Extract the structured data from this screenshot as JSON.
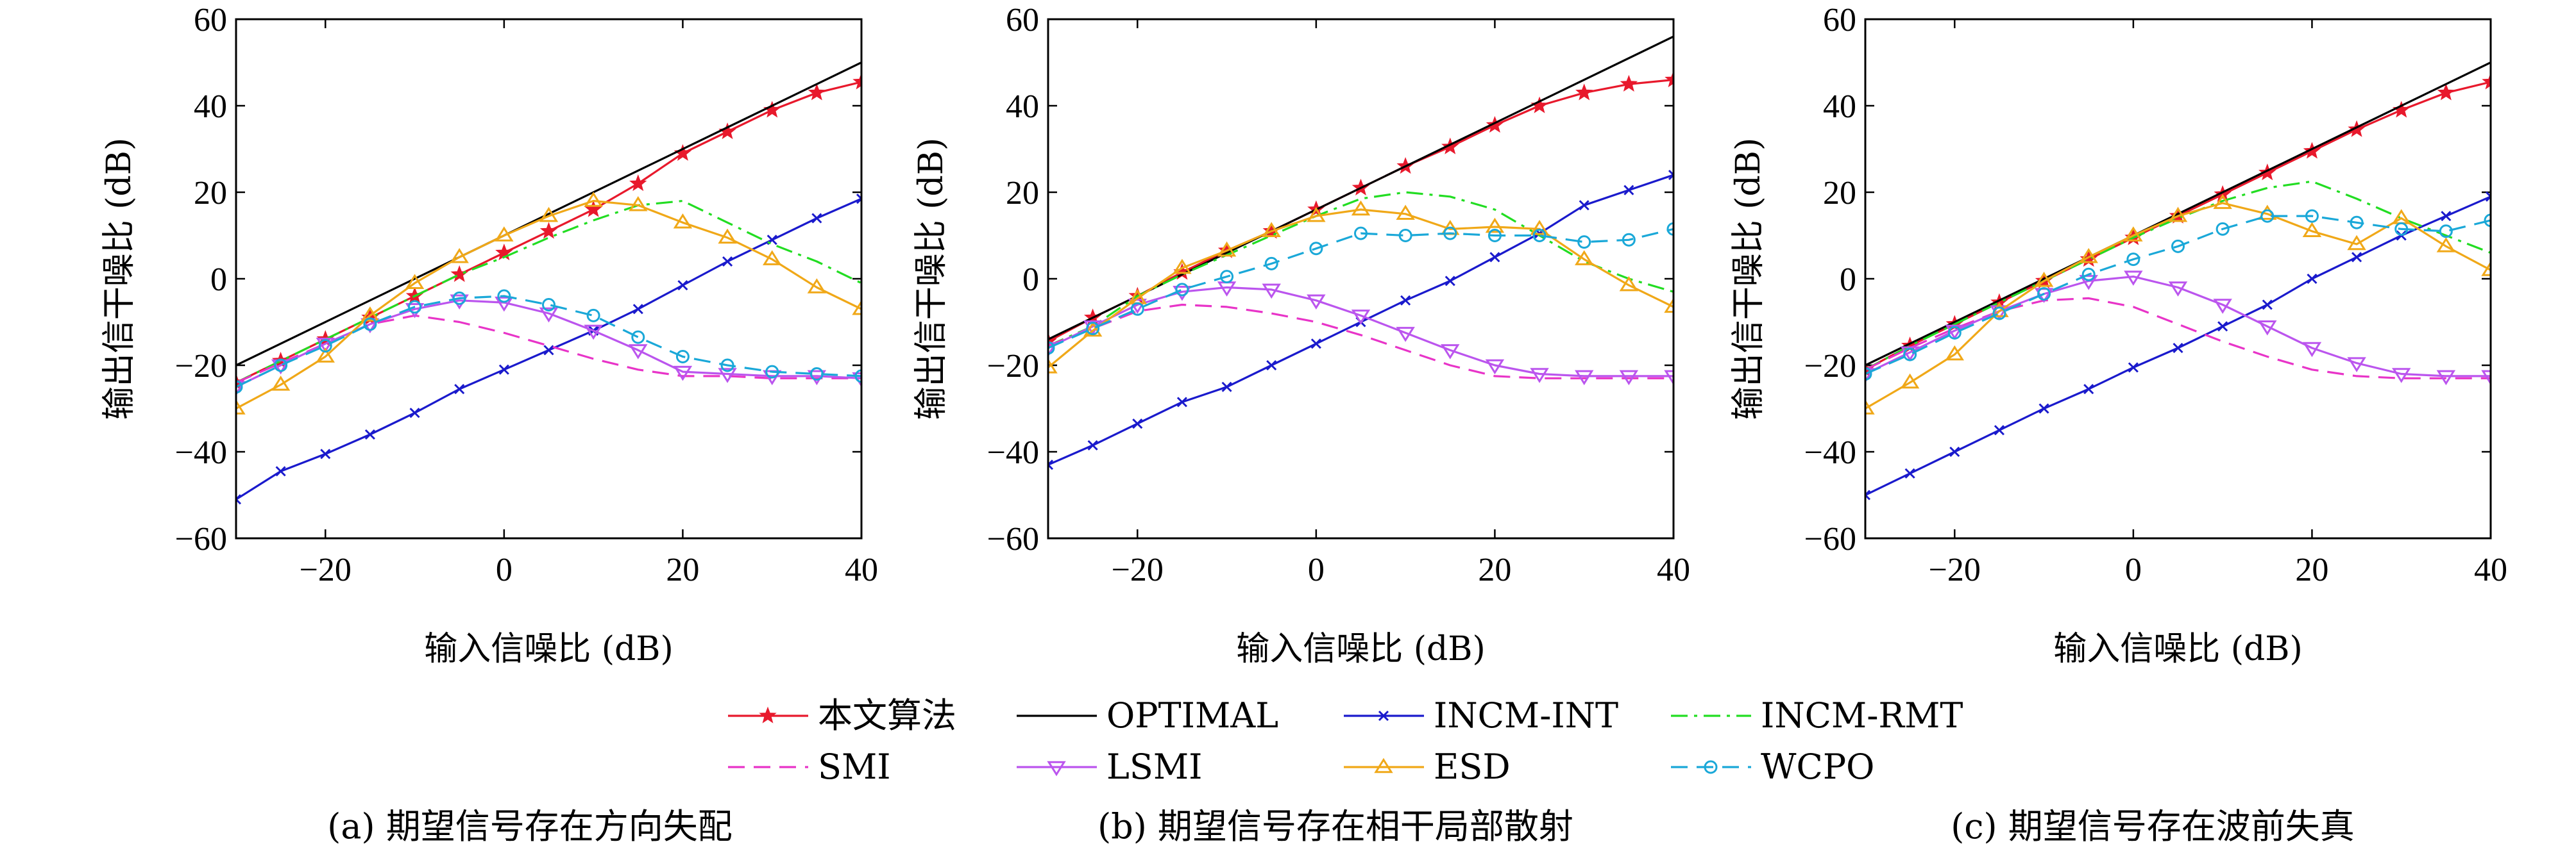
{
  "legend": [
    {
      "name": "本文算法",
      "color": "#e8192c",
      "dash": "",
      "marker": "star"
    },
    {
      "name": "OPTIMAL",
      "color": "#000000",
      "dash": "",
      "marker": "none"
    },
    {
      "name": "INCM-INT",
      "color": "#1a1acc",
      "dash": "",
      "marker": "x"
    },
    {
      "name": "INCM-RMT",
      "color": "#22dd22",
      "dash": "dashdot",
      "marker": "none"
    },
    {
      "name": "SMI",
      "color": "#e834c8",
      "dash": "dash",
      "marker": "none"
    },
    {
      "name": "LSMI",
      "color": "#bb55ee",
      "dash": "",
      "marker": "triangle-down"
    },
    {
      "name": "ESD",
      "color": "#f0a818",
      "dash": "",
      "marker": "triangle-up"
    },
    {
      "name": "WCPO",
      "color": "#1aa8d8",
      "dash": "dash",
      "marker": "circle"
    }
  ],
  "chart_data": [
    {
      "type": "line",
      "caption": "(a) 期望信号存在方向失配",
      "xlabel": "输入信噪比 (dB)",
      "ylabel": "输出信干噪比 (dB)",
      "xlim": [
        -30,
        40
      ],
      "ylim": [
        -60,
        60
      ],
      "xticks": [
        -20,
        0,
        20,
        40
      ],
      "yticks": [
        -60,
        -40,
        -20,
        0,
        20,
        40,
        60
      ],
      "xtick_labels": [
        "−20",
        "0",
        "20",
        "40"
      ],
      "ytick_labels": [
        "−60",
        "−40",
        "−20",
        "0",
        "20",
        "40",
        "60"
      ],
      "series": [
        {
          "name": "本文算法",
          "x": [
            -30,
            -25,
            -20,
            -15,
            -10,
            -5,
            0,
            5,
            10,
            15,
            20,
            25,
            30,
            35,
            40
          ],
          "y": [
            -24,
            -19,
            -14,
            -9,
            -4,
            1,
            6,
            11,
            16,
            22,
            29,
            34,
            39,
            43,
            45.5
          ]
        },
        {
          "name": "OPTIMAL",
          "x": [
            -30,
            40
          ],
          "y": [
            -20,
            50
          ]
        },
        {
          "name": "INCM-INT",
          "x": [
            -30,
            -25,
            -20,
            -15,
            -10,
            -5,
            0,
            5,
            10,
            15,
            20,
            25,
            30,
            35,
            40
          ],
          "y": [
            -51,
            -44.5,
            -40.5,
            -36,
            -31,
            -25.5,
            -21,
            -16.5,
            -12,
            -7,
            -1.5,
            4,
            9,
            14,
            18.5
          ]
        },
        {
          "name": "INCM-RMT",
          "x": [
            -30,
            -25,
            -20,
            -15,
            -10,
            -5,
            0,
            5,
            10,
            15,
            20,
            25,
            30,
            35,
            40
          ],
          "y": [
            -24,
            -19,
            -14,
            -9,
            -4,
            1,
            5,
            9.5,
            13.5,
            17,
            18,
            13,
            8,
            4,
            -1
          ]
        },
        {
          "name": "SMI",
          "x": [
            -30,
            -25,
            -20,
            -15,
            -10,
            -5,
            0,
            5,
            10,
            15,
            20,
            25,
            30,
            35,
            40
          ],
          "y": [
            -24,
            -19.5,
            -15,
            -10.5,
            -8.5,
            -10,
            -12.5,
            -15.5,
            -18.5,
            -21,
            -22.5,
            -22.5,
            -23,
            -23,
            -23
          ]
        },
        {
          "name": "LSMI",
          "x": [
            -30,
            -25,
            -20,
            -15,
            -10,
            -5,
            0,
            5,
            10,
            15,
            20,
            25,
            30,
            35,
            40
          ],
          "y": [
            -25,
            -20,
            -15,
            -10.5,
            -7,
            -5,
            -5.5,
            -8,
            -12,
            -16.5,
            -21.5,
            -22,
            -22.5,
            -22.5,
            -23
          ]
        },
        {
          "name": "ESD",
          "x": [
            -30,
            -25,
            -20,
            -15,
            -10,
            -5,
            0,
            5,
            10,
            15,
            20,
            25,
            30,
            35,
            40
          ],
          "y": [
            -30,
            -24.5,
            -18,
            -8.5,
            -1,
            5,
            10,
            14.5,
            18,
            17,
            13,
            9.5,
            4.5,
            -2,
            -7
          ]
        },
        {
          "name": "WCPO",
          "x": [
            -30,
            -25,
            -20,
            -15,
            -10,
            -5,
            0,
            5,
            10,
            15,
            20,
            25,
            30,
            35,
            40
          ],
          "y": [
            -25,
            -20,
            -15.5,
            -10.5,
            -6.5,
            -4.5,
            -4,
            -6,
            -8.5,
            -13.5,
            -18,
            -20,
            -21.5,
            -22,
            -22.5
          ]
        }
      ]
    },
    {
      "type": "line",
      "caption": "(b) 期望信号存在相干局部散射",
      "xlabel": "输入信噪比 (dB)",
      "ylabel": "输出信干噪比 (dB)",
      "xlim": [
        -30,
        40
      ],
      "ylim": [
        -60,
        60
      ],
      "xticks": [
        -20,
        0,
        20,
        40
      ],
      "yticks": [
        -60,
        -40,
        -20,
        0,
        20,
        40,
        60
      ],
      "xtick_labels": [
        "−20",
        "0",
        "20",
        "40"
      ],
      "ytick_labels": [
        "−60",
        "−40",
        "−20",
        "0",
        "20",
        "40",
        "60"
      ],
      "series": [
        {
          "name": "本文算法",
          "x": [
            -30,
            -25,
            -20,
            -15,
            -10,
            -5,
            0,
            5,
            10,
            15,
            20,
            25,
            30,
            35,
            40
          ],
          "y": [
            -14.5,
            -9,
            -4,
            1.5,
            6.5,
            11,
            16,
            21,
            26,
            30.5,
            35.5,
            40,
            43,
            45,
            46
          ]
        },
        {
          "name": "OPTIMAL",
          "x": [
            -30,
            40
          ],
          "y": [
            -14,
            56
          ]
        },
        {
          "name": "INCM-INT",
          "x": [
            -30,
            -25,
            -20,
            -15,
            -10,
            -5,
            0,
            5,
            10,
            15,
            20,
            25,
            30,
            35,
            40
          ],
          "y": [
            -43,
            -38.5,
            -33.5,
            -28.5,
            -25,
            -20,
            -15,
            -10,
            -5,
            -0.5,
            5,
            10.5,
            17,
            20.5,
            24
          ]
        },
        {
          "name": "INCM-RMT",
          "x": [
            -30,
            -25,
            -20,
            -15,
            -10,
            -5,
            0,
            5,
            10,
            15,
            20,
            25,
            30,
            35,
            40
          ],
          "y": [
            -15.5,
            -11,
            -4,
            1,
            5.5,
            10,
            14.5,
            18.5,
            20,
            19,
            16,
            10,
            4,
            0,
            -3
          ]
        },
        {
          "name": "SMI",
          "x": [
            -30,
            -25,
            -20,
            -15,
            -10,
            -5,
            0,
            5,
            10,
            15,
            20,
            25,
            30,
            35,
            40
          ],
          "y": [
            -15.5,
            -11.5,
            -7.5,
            -6,
            -6.5,
            -8,
            -10,
            -13,
            -16.5,
            -20,
            -22.5,
            -23,
            -23,
            -23,
            -23
          ]
        },
        {
          "name": "LSMI",
          "x": [
            -30,
            -25,
            -20,
            -15,
            -10,
            -5,
            0,
            5,
            10,
            15,
            20,
            25,
            30,
            35,
            40
          ],
          "y": [
            -16,
            -11,
            -6,
            -3,
            -2,
            -2.5,
            -5,
            -8.5,
            -12.5,
            -16.5,
            -20,
            -22,
            -22.5,
            -22.5,
            -22.5
          ]
        },
        {
          "name": "ESD",
          "x": [
            -30,
            -25,
            -20,
            -15,
            -10,
            -5,
            0,
            5,
            10,
            15,
            20,
            25,
            30,
            35,
            40
          ],
          "y": [
            -20.5,
            -12,
            -4.5,
            2.5,
            6.5,
            11,
            14.5,
            16,
            15,
            11.5,
            12,
            11.5,
            4.5,
            -1.5,
            -6.5
          ]
        },
        {
          "name": "WCPO",
          "x": [
            -30,
            -25,
            -20,
            -15,
            -10,
            -5,
            0,
            5,
            10,
            15,
            20,
            25,
            30,
            35,
            40
          ],
          "y": [
            -16,
            -11.5,
            -7,
            -2.5,
            0.5,
            3.5,
            7,
            10.5,
            10,
            10.5,
            10,
            10,
            8.5,
            9,
            11.5
          ]
        }
      ]
    },
    {
      "type": "line",
      "caption": "(c) 期望信号存在波前失真",
      "xlabel": "输入信噪比 (dB)",
      "ylabel": "输出信干噪比 (dB)",
      "xlim": [
        -30,
        40
      ],
      "ylim": [
        -60,
        60
      ],
      "xticks": [
        -20,
        0,
        20,
        40
      ],
      "yticks": [
        -60,
        -40,
        -20,
        0,
        20,
        40,
        60
      ],
      "xtick_labels": [
        "−20",
        "0",
        "20",
        "40"
      ],
      "ytick_labels": [
        "−60",
        "−40",
        "−20",
        "0",
        "20",
        "40",
        "60"
      ],
      "series": [
        {
          "name": "本文算法",
          "x": [
            -30,
            -25,
            -20,
            -15,
            -10,
            -5,
            0,
            5,
            10,
            15,
            20,
            25,
            30,
            35,
            40
          ],
          "y": [
            -21,
            -15.5,
            -10.5,
            -5.5,
            -0.5,
            4.5,
            9.5,
            14.5,
            19.5,
            24.5,
            29.5,
            34.5,
            39,
            43,
            45.5
          ]
        },
        {
          "name": "OPTIMAL",
          "x": [
            -30,
            40
          ],
          "y": [
            -20,
            50
          ]
        },
        {
          "name": "INCM-INT",
          "x": [
            -30,
            -25,
            -20,
            -15,
            -10,
            -5,
            0,
            5,
            10,
            15,
            20,
            25,
            30,
            35,
            40
          ],
          "y": [
            -50,
            -45,
            -40,
            -35,
            -30,
            -25.5,
            -20.5,
            -16,
            -11,
            -6,
            0,
            5,
            10,
            14.5,
            19
          ]
        },
        {
          "name": "INCM-RMT",
          "x": [
            -30,
            -25,
            -20,
            -15,
            -10,
            -5,
            0,
            5,
            10,
            15,
            20,
            25,
            30,
            35,
            40
          ],
          "y": [
            -21,
            -15.5,
            -10.5,
            -5.5,
            -0.5,
            4.5,
            9.5,
            14,
            18,
            21,
            22.5,
            18.5,
            14,
            10,
            6
          ]
        },
        {
          "name": "SMI",
          "x": [
            -30,
            -25,
            -20,
            -15,
            -10,
            -5,
            0,
            5,
            10,
            15,
            20,
            25,
            30,
            35,
            40
          ],
          "y": [
            -21,
            -16,
            -11.5,
            -7.5,
            -5,
            -4.5,
            -6.5,
            -10.5,
            -14.5,
            -18,
            -21,
            -22.5,
            -23,
            -23,
            -23
          ]
        },
        {
          "name": "LSMI",
          "x": [
            -30,
            -25,
            -20,
            -15,
            -10,
            -5,
            0,
            5,
            10,
            15,
            20,
            25,
            30,
            35,
            40
          ],
          "y": [
            -22,
            -17,
            -12,
            -7.5,
            -3.5,
            -0.5,
            0.5,
            -2,
            -6,
            -11,
            -16,
            -19.5,
            -22,
            -22.5,
            -22.5
          ]
        },
        {
          "name": "ESD",
          "x": [
            -30,
            -25,
            -20,
            -15,
            -10,
            -5,
            0,
            5,
            10,
            15,
            20,
            25,
            30,
            35,
            40
          ],
          "y": [
            -30,
            -24,
            -17.5,
            -7.5,
            -0.5,
            5,
            10,
            14.5,
            17.5,
            15,
            11,
            8,
            14,
            7.5,
            2
          ]
        },
        {
          "name": "WCPO",
          "x": [
            -30,
            -25,
            -20,
            -15,
            -10,
            -5,
            0,
            5,
            10,
            15,
            20,
            25,
            30,
            35,
            40
          ],
          "y": [
            -22,
            -17.5,
            -12.5,
            -8,
            -3.5,
            1,
            4.5,
            7.5,
            11.5,
            14.5,
            14.5,
            13,
            11.5,
            11,
            13.5
          ]
        }
      ]
    }
  ]
}
